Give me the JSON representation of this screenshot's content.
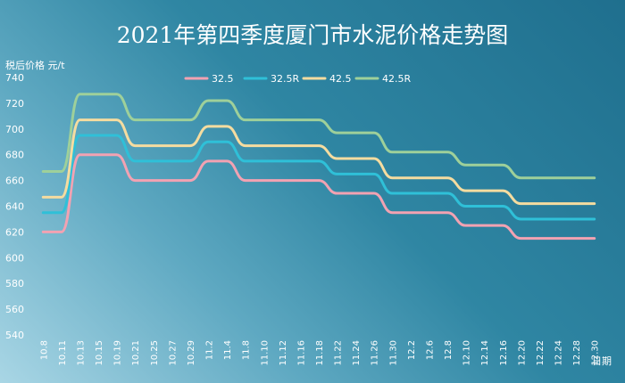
{
  "chart_data": {
    "type": "line",
    "title": "2021年第四季度厦门市水泥价格走势图",
    "ylabel": "税后价格  元/t",
    "xlabel": "日期",
    "ylim": [
      540,
      740
    ],
    "yticks": [
      540,
      560,
      580,
      600,
      620,
      640,
      660,
      680,
      700,
      720,
      740
    ],
    "legend_position": "top-center",
    "xtick_labels": [
      "10.8",
      "10.11",
      "10.13",
      "10.15",
      "10.19",
      "10.21",
      "10.25",
      "10.27",
      "10.29",
      "11.2",
      "11.4",
      "11.8",
      "11.10",
      "11.12",
      "11.16",
      "11.18",
      "11.22",
      "11.24",
      "11.26",
      "11.30",
      "12.2",
      "12.6",
      "12.8",
      "12.10",
      "12.14",
      "12.16",
      "12.20",
      "12.22",
      "12.24",
      "12.28",
      "12.30"
    ],
    "series": [
      {
        "name": "32.5",
        "color": "#f2a2b2",
        "values": [
          620,
          620,
          680,
          680,
          680,
          660,
          660,
          660,
          660,
          675,
          675,
          660,
          660,
          660,
          660,
          660,
          650,
          650,
          650,
          635,
          635,
          635,
          635,
          625,
          625,
          625,
          615,
          615,
          615,
          615,
          615
        ]
      },
      {
        "name": "32.5R",
        "color": "#2fc0d8",
        "values": [
          635,
          635,
          695,
          695,
          695,
          675,
          675,
          675,
          675,
          690,
          690,
          675,
          675,
          675,
          675,
          675,
          665,
          665,
          665,
          650,
          650,
          650,
          650,
          640,
          640,
          640,
          630,
          630,
          630,
          630,
          630
        ]
      },
      {
        "name": "42.5",
        "color": "#f5dca0",
        "values": [
          647,
          647,
          707,
          707,
          707,
          687,
          687,
          687,
          687,
          702,
          702,
          687,
          687,
          687,
          687,
          687,
          677,
          677,
          677,
          662,
          662,
          662,
          662,
          652,
          652,
          652,
          642,
          642,
          642,
          642,
          642
        ]
      },
      {
        "name": "42.5R",
        "color": "#9ed09a",
        "values": [
          667,
          667,
          727,
          727,
          727,
          707,
          707,
          707,
          707,
          722,
          722,
          707,
          707,
          707,
          707,
          707,
          697,
          697,
          697,
          682,
          682,
          682,
          682,
          672,
          672,
          672,
          662,
          662,
          662,
          662,
          662
        ]
      }
    ]
  }
}
